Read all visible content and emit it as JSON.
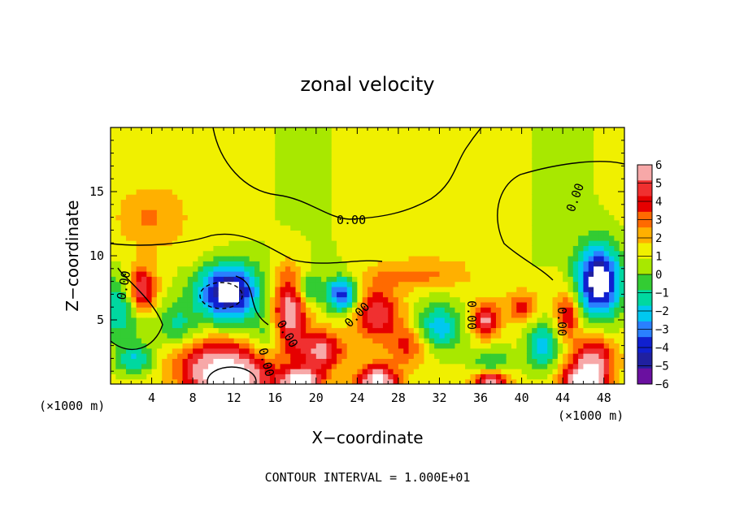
{
  "chart_data": {
    "type": "heatmap",
    "title": "zonal velocity",
    "xlabel": "X−coordinate",
    "ylabel": "Z−coordinate",
    "x_unit_label": "(×1000 m)",
    "x_ticks": [
      4,
      8,
      12,
      16,
      20,
      24,
      28,
      32,
      36,
      40,
      44,
      48
    ],
    "y_ticks": [
      5,
      10,
      15
    ],
    "xlim": [
      0,
      50
    ],
    "ylim": [
      0,
      20
    ],
    "contour_label": "0.00",
    "footer": "CONTOUR INTERVAL = 1.000E+01",
    "colorbar": {
      "ticks": [
        "6",
        "5",
        "4",
        "3",
        "2",
        "1",
        "0",
        "−1",
        "−2",
        "−3",
        "−4",
        "−5",
        "−6"
      ],
      "colors": [
        "#f7a8a8",
        "#f03030",
        "#e60000",
        "#ff6a00",
        "#ffb000",
        "#f0f000",
        "#a8e800",
        "#33cc33",
        "#00d8a0",
        "#00c8f0",
        "#2a80ff",
        "#1020d0",
        "#2020a0",
        "#6a10a0"
      ]
    },
    "anomalies": [
      {
        "x": 11.5,
        "z": 7.2,
        "v": -8,
        "rx": 3.0,
        "rz": 2.2
      },
      {
        "x": 10.5,
        "z": 2.2,
        "v": 4,
        "rx": 5.0,
        "rz": 1.6
      },
      {
        "x": 11.5,
        "z": 0.4,
        "v": 7,
        "rx": 4.0,
        "rz": 1.5
      },
      {
        "x": 3.0,
        "z": 7.3,
        "v": 6,
        "rx": 1.4,
        "rz": 1.8
      },
      {
        "x": 1.0,
        "z": 6.0,
        "v": -3.5,
        "rx": 2.5,
        "rz": 2.5
      },
      {
        "x": 6.5,
        "z": 4.5,
        "v": -2.5,
        "rx": 2.0,
        "rz": 2.0
      },
      {
        "x": 17.5,
        "z": 6.0,
        "v": 6,
        "rx": 1.6,
        "rz": 3.0
      },
      {
        "x": 20.5,
        "z": 2.6,
        "v": 5,
        "rx": 2.2,
        "rz": 1.6
      },
      {
        "x": 22.5,
        "z": 7.0,
        "v": -6,
        "rx": 1.5,
        "rz": 1.4
      },
      {
        "x": 19.0,
        "z": 7.5,
        "v": -3.5,
        "rx": 1.5,
        "rz": 1.3
      },
      {
        "x": 26.0,
        "z": 5.5,
        "v": 4.5,
        "rx": 2.2,
        "rz": 2.2
      },
      {
        "x": 29.0,
        "z": 3.0,
        "v": 3,
        "rx": 1.8,
        "rz": 1.5
      },
      {
        "x": 32.0,
        "z": 4.5,
        "v": -4,
        "rx": 2.2,
        "rz": 1.8
      },
      {
        "x": 36.5,
        "z": 5.0,
        "v": 5,
        "rx": 1.3,
        "rz": 1.4
      },
      {
        "x": 40.0,
        "z": 6.0,
        "v": 3,
        "rx": 1.5,
        "rz": 1.2
      },
      {
        "x": 42.0,
        "z": 3.0,
        "v": -4,
        "rx": 1.5,
        "rz": 1.8
      },
      {
        "x": 44.5,
        "z": 5.5,
        "v": 4,
        "rx": 1.2,
        "rz": 1.8
      },
      {
        "x": 47.5,
        "z": 8.0,
        "v": -8,
        "rx": 2.2,
        "rz": 2.8
      },
      {
        "x": 47.0,
        "z": 2.0,
        "v": 5,
        "rx": 2.0,
        "rz": 1.8
      },
      {
        "x": 46.0,
        "z": 0.3,
        "v": 7,
        "rx": 2.0,
        "rz": 1.2
      },
      {
        "x": 37.0,
        "z": 1.5,
        "v": -3,
        "rx": 1.8,
        "rz": 1.3
      },
      {
        "x": 37.0,
        "z": 0.2,
        "v": 7,
        "rx": 1.6,
        "rz": 1.0
      },
      {
        "x": 26.0,
        "z": 0.3,
        "v": 7,
        "rx": 2.0,
        "rz": 1.2
      },
      {
        "x": 18.5,
        "z": 0.2,
        "v": 7,
        "rx": 2.0,
        "rz": 1.0
      },
      {
        "x": 30.0,
        "z": 8.5,
        "v": 2,
        "rx": 5.0,
        "rz": 1.0
      },
      {
        "x": 15.0,
        "z": 3.5,
        "v": -2,
        "rx": 1.5,
        "rz": 1.5
      },
      {
        "x": 3.5,
        "z": 13.0,
        "v": 1.5,
        "rx": 3.0,
        "rz": 2.0
      },
      {
        "x": 2.5,
        "z": 2.0,
        "v": -3.5,
        "rx": 2.0,
        "rz": 1.2
      }
    ]
  }
}
